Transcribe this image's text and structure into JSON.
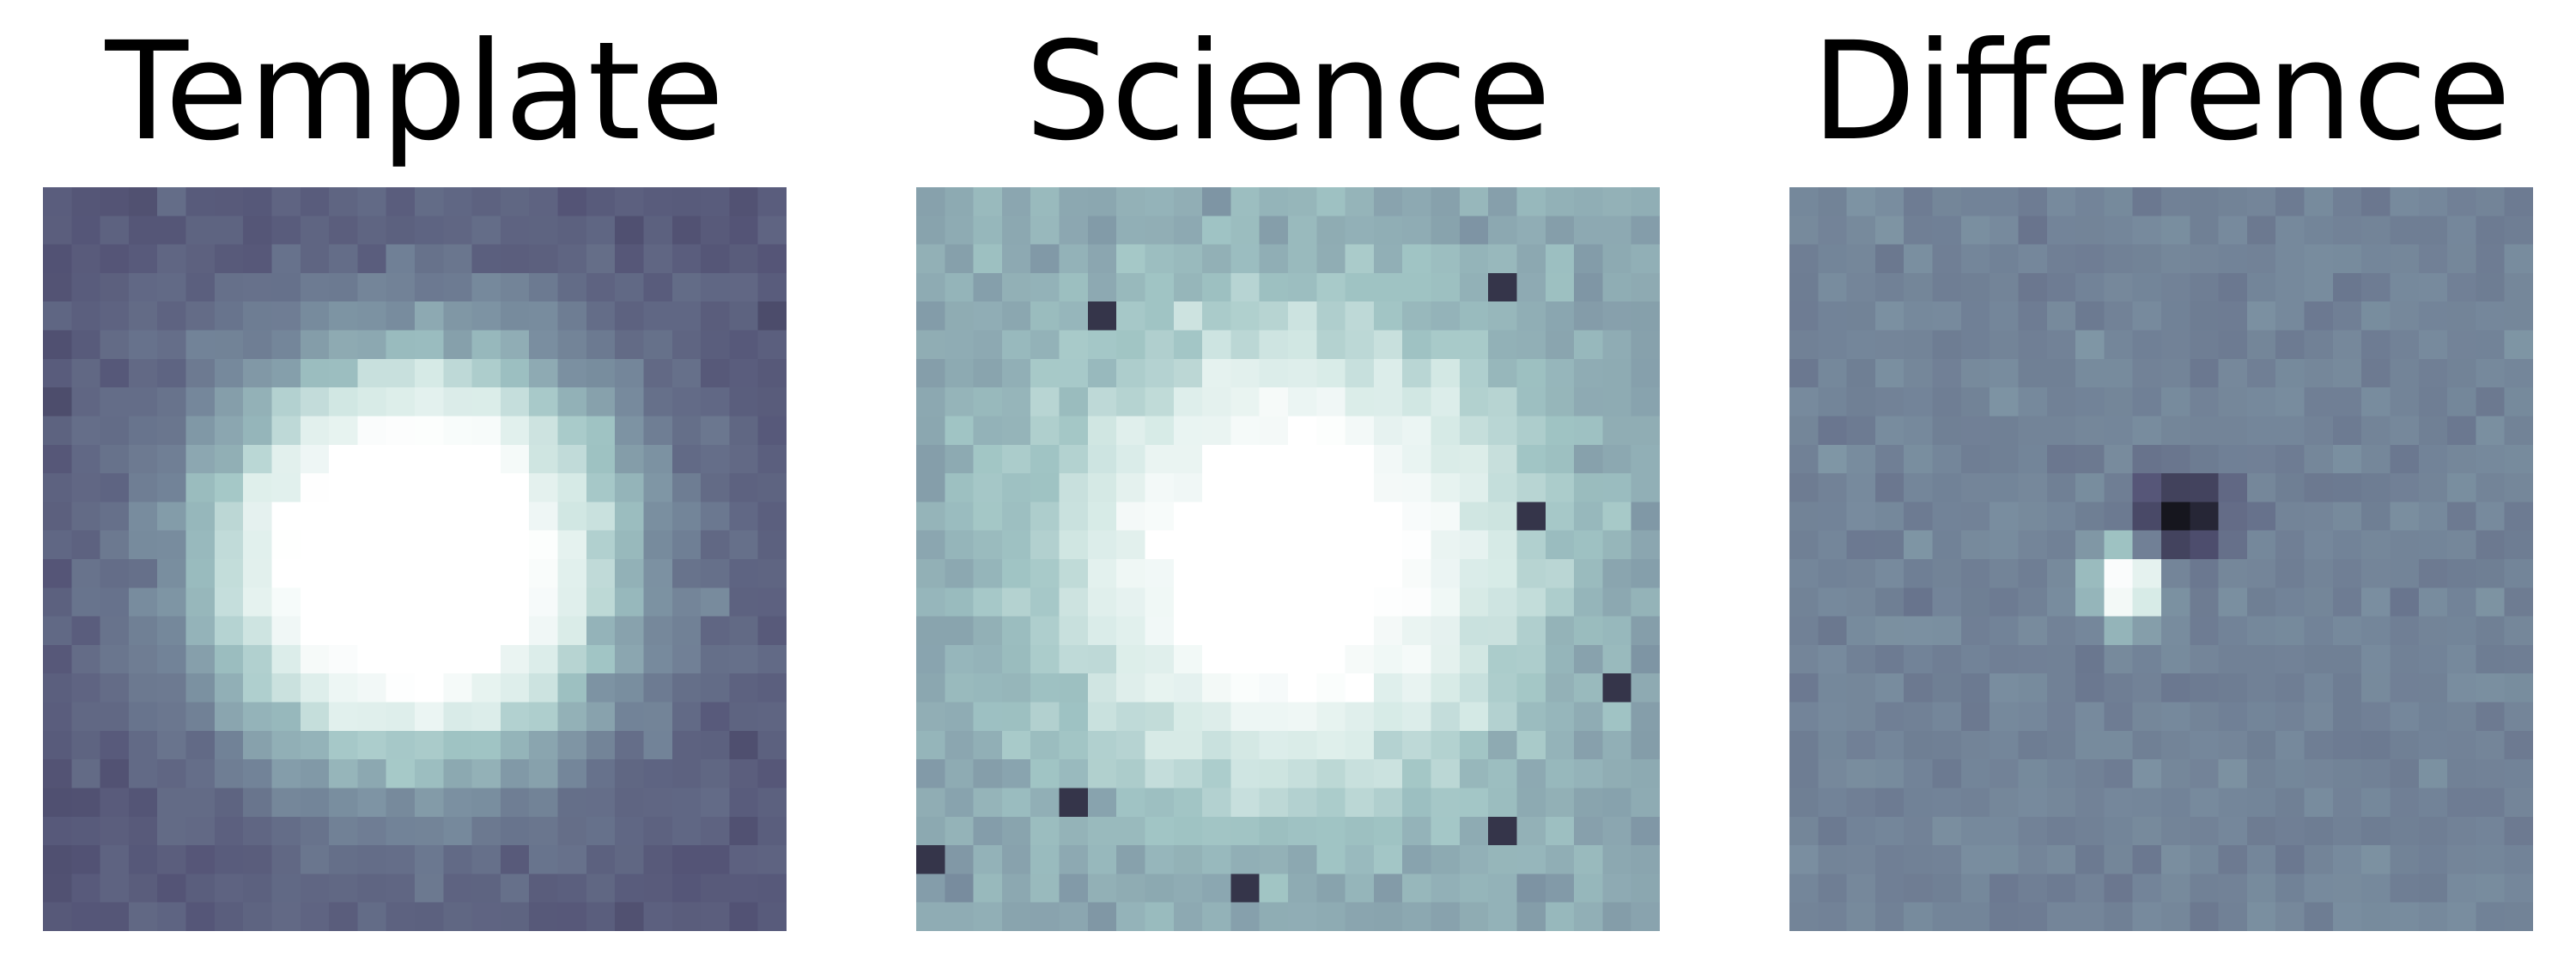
{
  "panels": [
    {
      "title": "Template",
      "colormap": "bone"
    },
    {
      "title": "Science",
      "colormap": "bone"
    },
    {
      "title": "Difference",
      "colormap": "bone"
    }
  ]
}
